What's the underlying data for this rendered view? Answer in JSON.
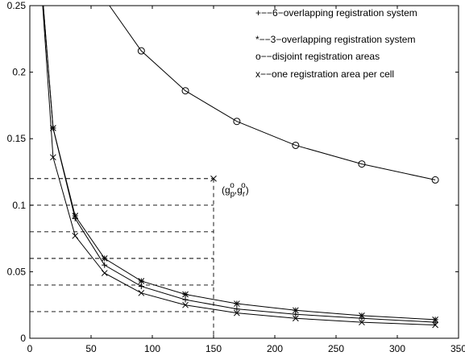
{
  "chart_data": {
    "type": "line",
    "title": "",
    "xlabel": "",
    "ylabel": "",
    "xlim": [
      0,
      350
    ],
    "ylim": [
      0,
      0.25
    ],
    "xticks": [
      0,
      50,
      100,
      150,
      200,
      250,
      300,
      350
    ],
    "yticks": [
      0,
      0.05,
      0.1,
      0.15,
      0.2,
      0.25
    ],
    "xtick_labels": [
      "0",
      "50",
      "100",
      "150",
      "200",
      "250",
      "300",
      "350"
    ],
    "ytick_labels": [
      "0",
      "0.05",
      "0.1",
      "0.15",
      "0.2",
      "0.25"
    ],
    "grid": false,
    "legend_position": "top-right",
    "legend": [
      {
        "marker": "+",
        "text": "+−−6−overlapping registration system"
      },
      {
        "marker": "*",
        "text": "*−−3−overlapping registration system"
      },
      {
        "marker": "o",
        "text": "o−−disjoint registration areas"
      },
      {
        "marker": "x",
        "text": "x−−one registration area per cell"
      }
    ],
    "series": [
      {
        "marker": "+",
        "x": [
          19,
          37,
          61,
          91,
          127,
          169,
          217,
          271,
          331
        ],
        "y": [
          0.158,
          0.09,
          0.055,
          0.039,
          0.029,
          0.022,
          0.018,
          0.015,
          0.012
        ]
      },
      {
        "marker": "*",
        "x": [
          19,
          37,
          61,
          91,
          127,
          169,
          217,
          271,
          331
        ],
        "y": [
          0.158,
          0.092,
          0.06,
          0.043,
          0.033,
          0.026,
          0.021,
          0.017,
          0.014
        ]
      },
      {
        "marker": "o",
        "x": [
          91,
          127,
          169,
          217,
          271,
          331
        ],
        "y": [
          0.216,
          0.186,
          0.163,
          0.145,
          0.131,
          0.119
        ]
      },
      {
        "marker": "x",
        "x": [
          19,
          37,
          61,
          91,
          127,
          169,
          217,
          271,
          331
        ],
        "y": [
          0.136,
          0.077,
          0.049,
          0.034,
          0.025,
          0.019,
          0.015,
          0.012,
          0.01
        ]
      }
    ],
    "curve_tops": [
      {
        "series": 0,
        "x": 11,
        "y": 0.25
      },
      {
        "series": 1,
        "x": 11,
        "y": 0.25
      },
      {
        "series": 2,
        "x": 65,
        "y": 0.25
      },
      {
        "series": 3,
        "x": 10.5,
        "y": 0.25
      }
    ],
    "reference_lines": {
      "horizontal_y": [
        0.12,
        0.1,
        0.08,
        0.06,
        0.04,
        0.02
      ],
      "x_end": 150,
      "vertical_x": 150
    },
    "annotation": {
      "marker": "x",
      "x": 150,
      "y": 0.12,
      "label_open": "(g",
      "label_p_sub": "p",
      "label_p_sup": "o",
      "label_comma": ",g",
      "label_r_sub": "r",
      "label_r_sup": "o",
      "label_close": ")"
    }
  }
}
